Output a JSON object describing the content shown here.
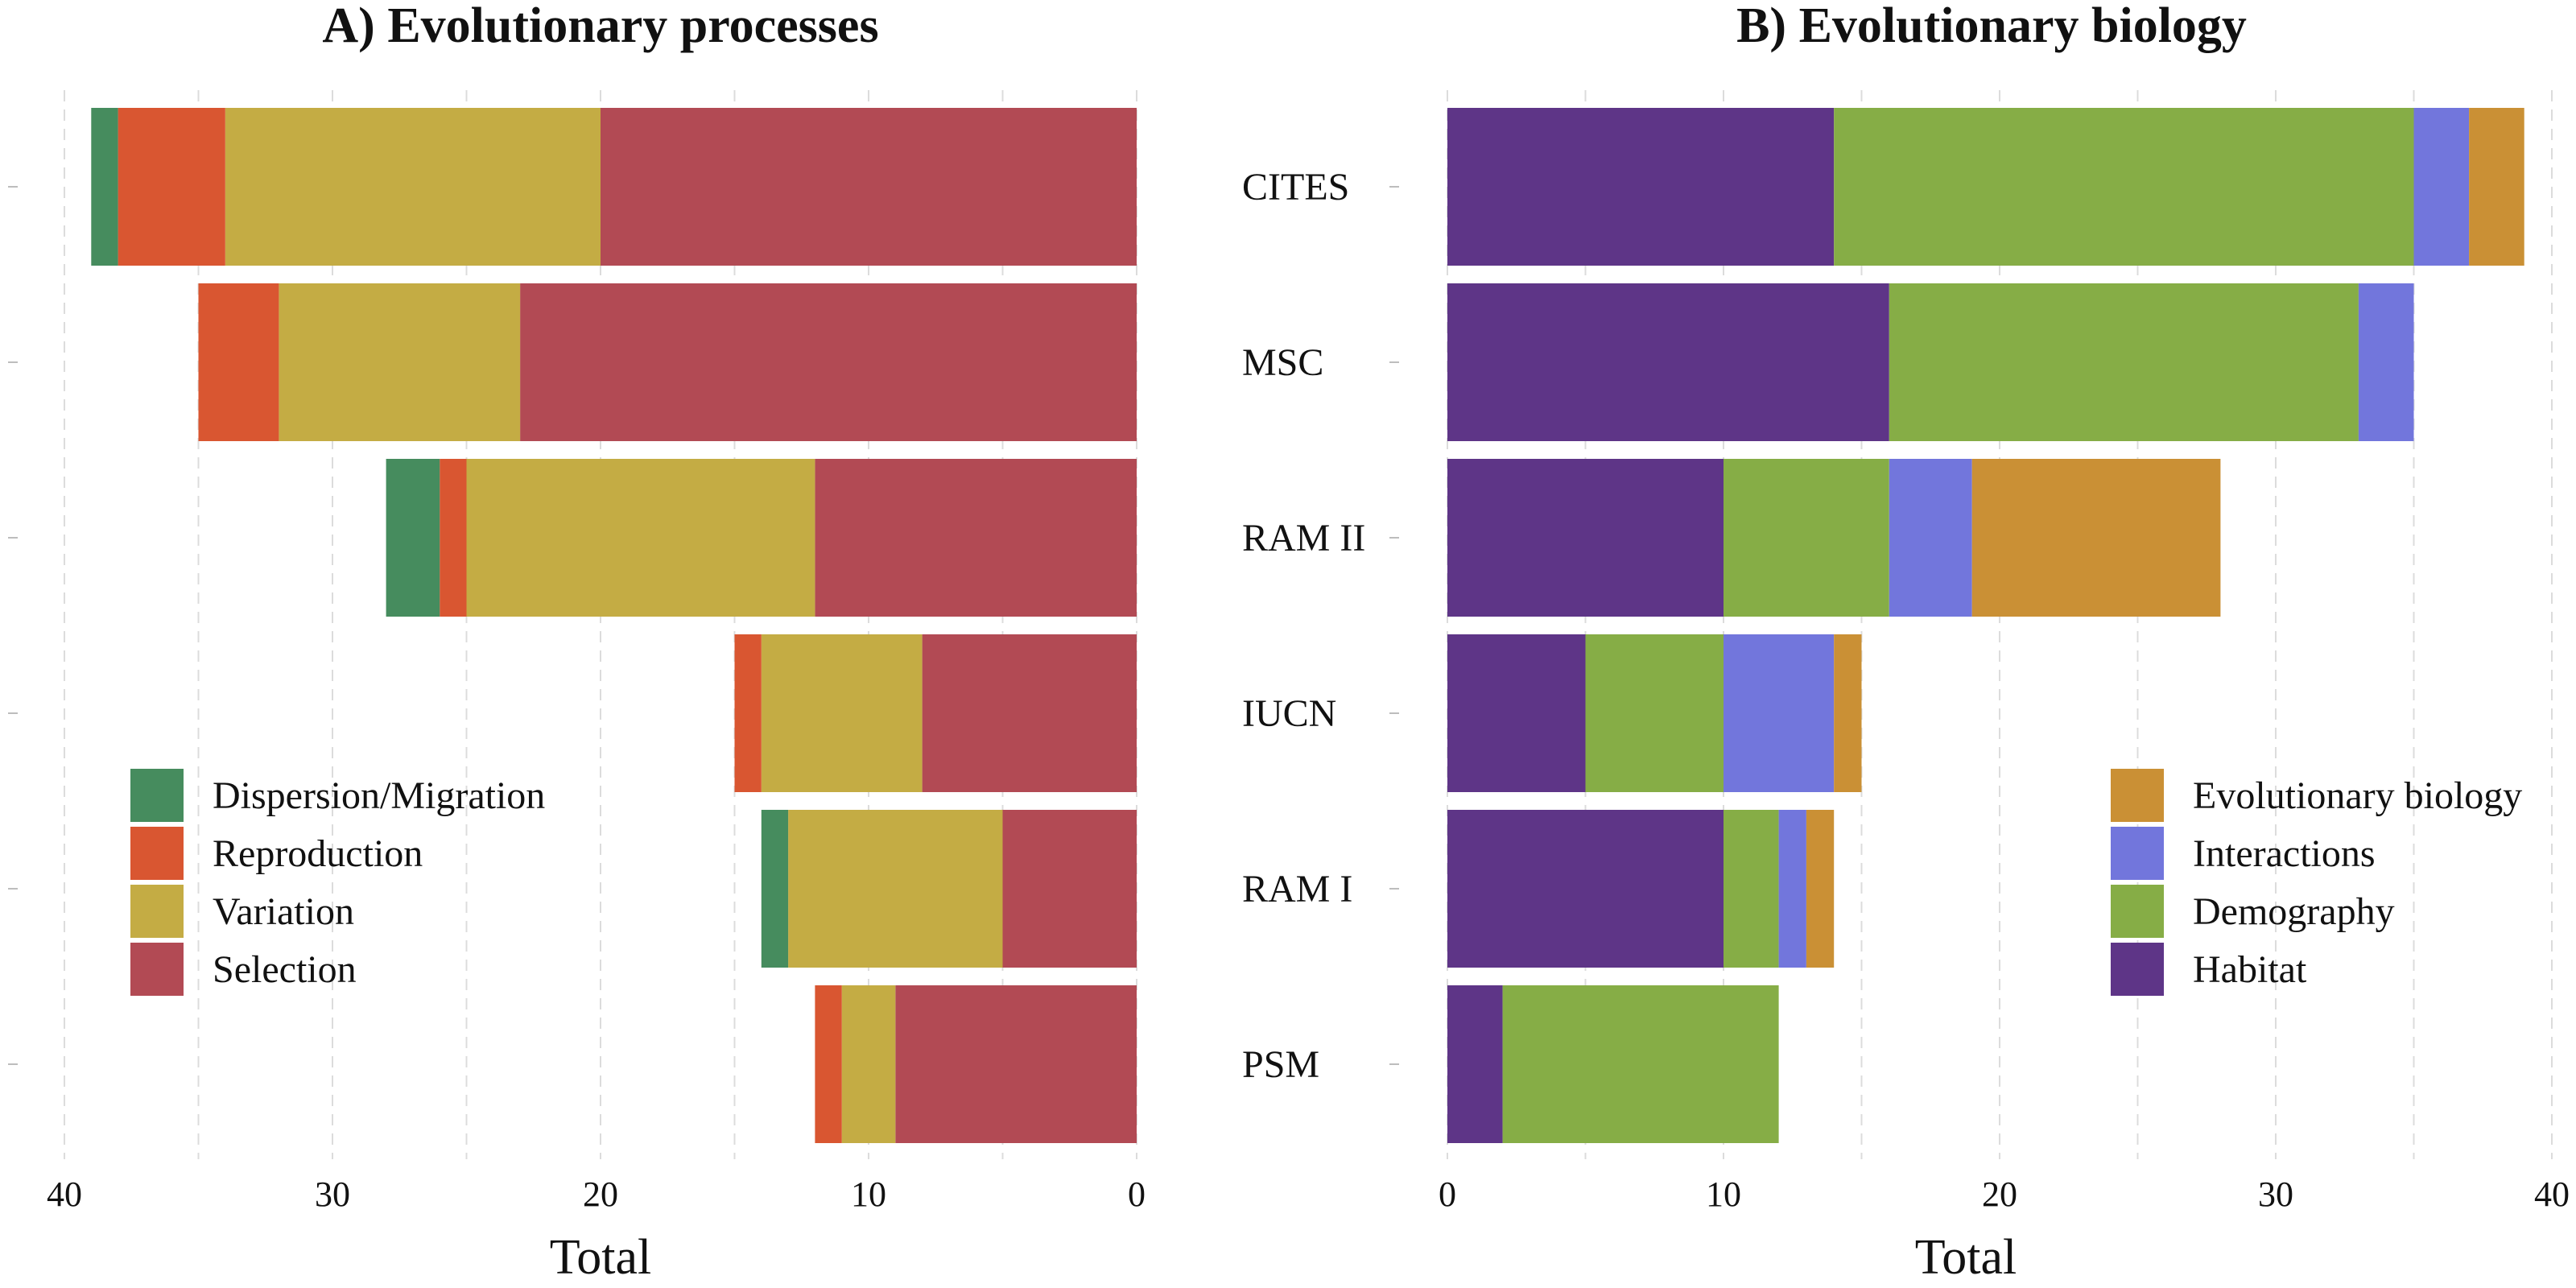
{
  "chart_data": [
    {
      "panel": "A",
      "type": "bar",
      "orientation": "horizontal-stacked",
      "title": "A) Evolutionary processes",
      "xlabel": "Total",
      "ylabel": "",
      "xlim": [
        40,
        0
      ],
      "x_reversed": true,
      "x_ticks": [
        40,
        30,
        20,
        10,
        0
      ],
      "grid": true,
      "legend_position": "bottom-left",
      "show_category_labels": false,
      "categories": [
        "CITES",
        "MSC",
        "RAM II",
        "IUCN",
        "RAM I",
        "PSM"
      ],
      "series": [
        {
          "name": "Dispersion/Migration",
          "color": "#468c5e",
          "values": [
            1,
            0,
            2,
            0,
            1,
            0
          ]
        },
        {
          "name": "Reproduction",
          "color": "#d95631",
          "values": [
            4,
            3,
            1,
            1,
            0,
            1
          ]
        },
        {
          "name": "Variation",
          "color": "#c4ac44",
          "values": [
            14,
            9,
            13,
            6,
            8,
            2
          ]
        },
        {
          "name": "Selection",
          "color": "#b24a54",
          "values": [
            20,
            23,
            12,
            8,
            5,
            9
          ]
        }
      ],
      "stack_order": [
        "Selection",
        "Variation",
        "Reproduction",
        "Dispersion/Migration"
      ],
      "legend_order": [
        "Dispersion/Migration",
        "Reproduction",
        "Variation",
        "Selection"
      ]
    },
    {
      "panel": "B",
      "type": "bar",
      "orientation": "horizontal-stacked",
      "title": "B) Evolutionary biology",
      "xlabel": "Total",
      "ylabel": "",
      "xlim": [
        0,
        40
      ],
      "x_reversed": false,
      "x_ticks": [
        0,
        10,
        20,
        30,
        40
      ],
      "grid": true,
      "legend_position": "bottom-right",
      "show_category_labels": true,
      "categories": [
        "CITES",
        "MSC",
        "RAM II",
        "IUCN",
        "RAM I",
        "PSM"
      ],
      "series": [
        {
          "name": "Habitat",
          "color": "#5e3587",
          "values": [
            14,
            16,
            10,
            5,
            10,
            2
          ]
        },
        {
          "name": "Demography",
          "color": "#86ad46",
          "values": [
            21,
            17,
            6,
            5,
            2,
            10
          ]
        },
        {
          "name": "Interactions",
          "color": "#7276dc",
          "values": [
            2,
            2,
            3,
            4,
            1,
            0
          ]
        },
        {
          "name": "Evolutionary biology",
          "color": "#ca9035",
          "values": [
            2,
            0,
            9,
            1,
            1,
            0
          ]
        }
      ],
      "stack_order": [
        "Habitat",
        "Demography",
        "Interactions",
        "Evolutionary biology"
      ],
      "legend_order": [
        "Evolutionary biology",
        "Interactions",
        "Demography",
        "Habitat"
      ]
    }
  ]
}
